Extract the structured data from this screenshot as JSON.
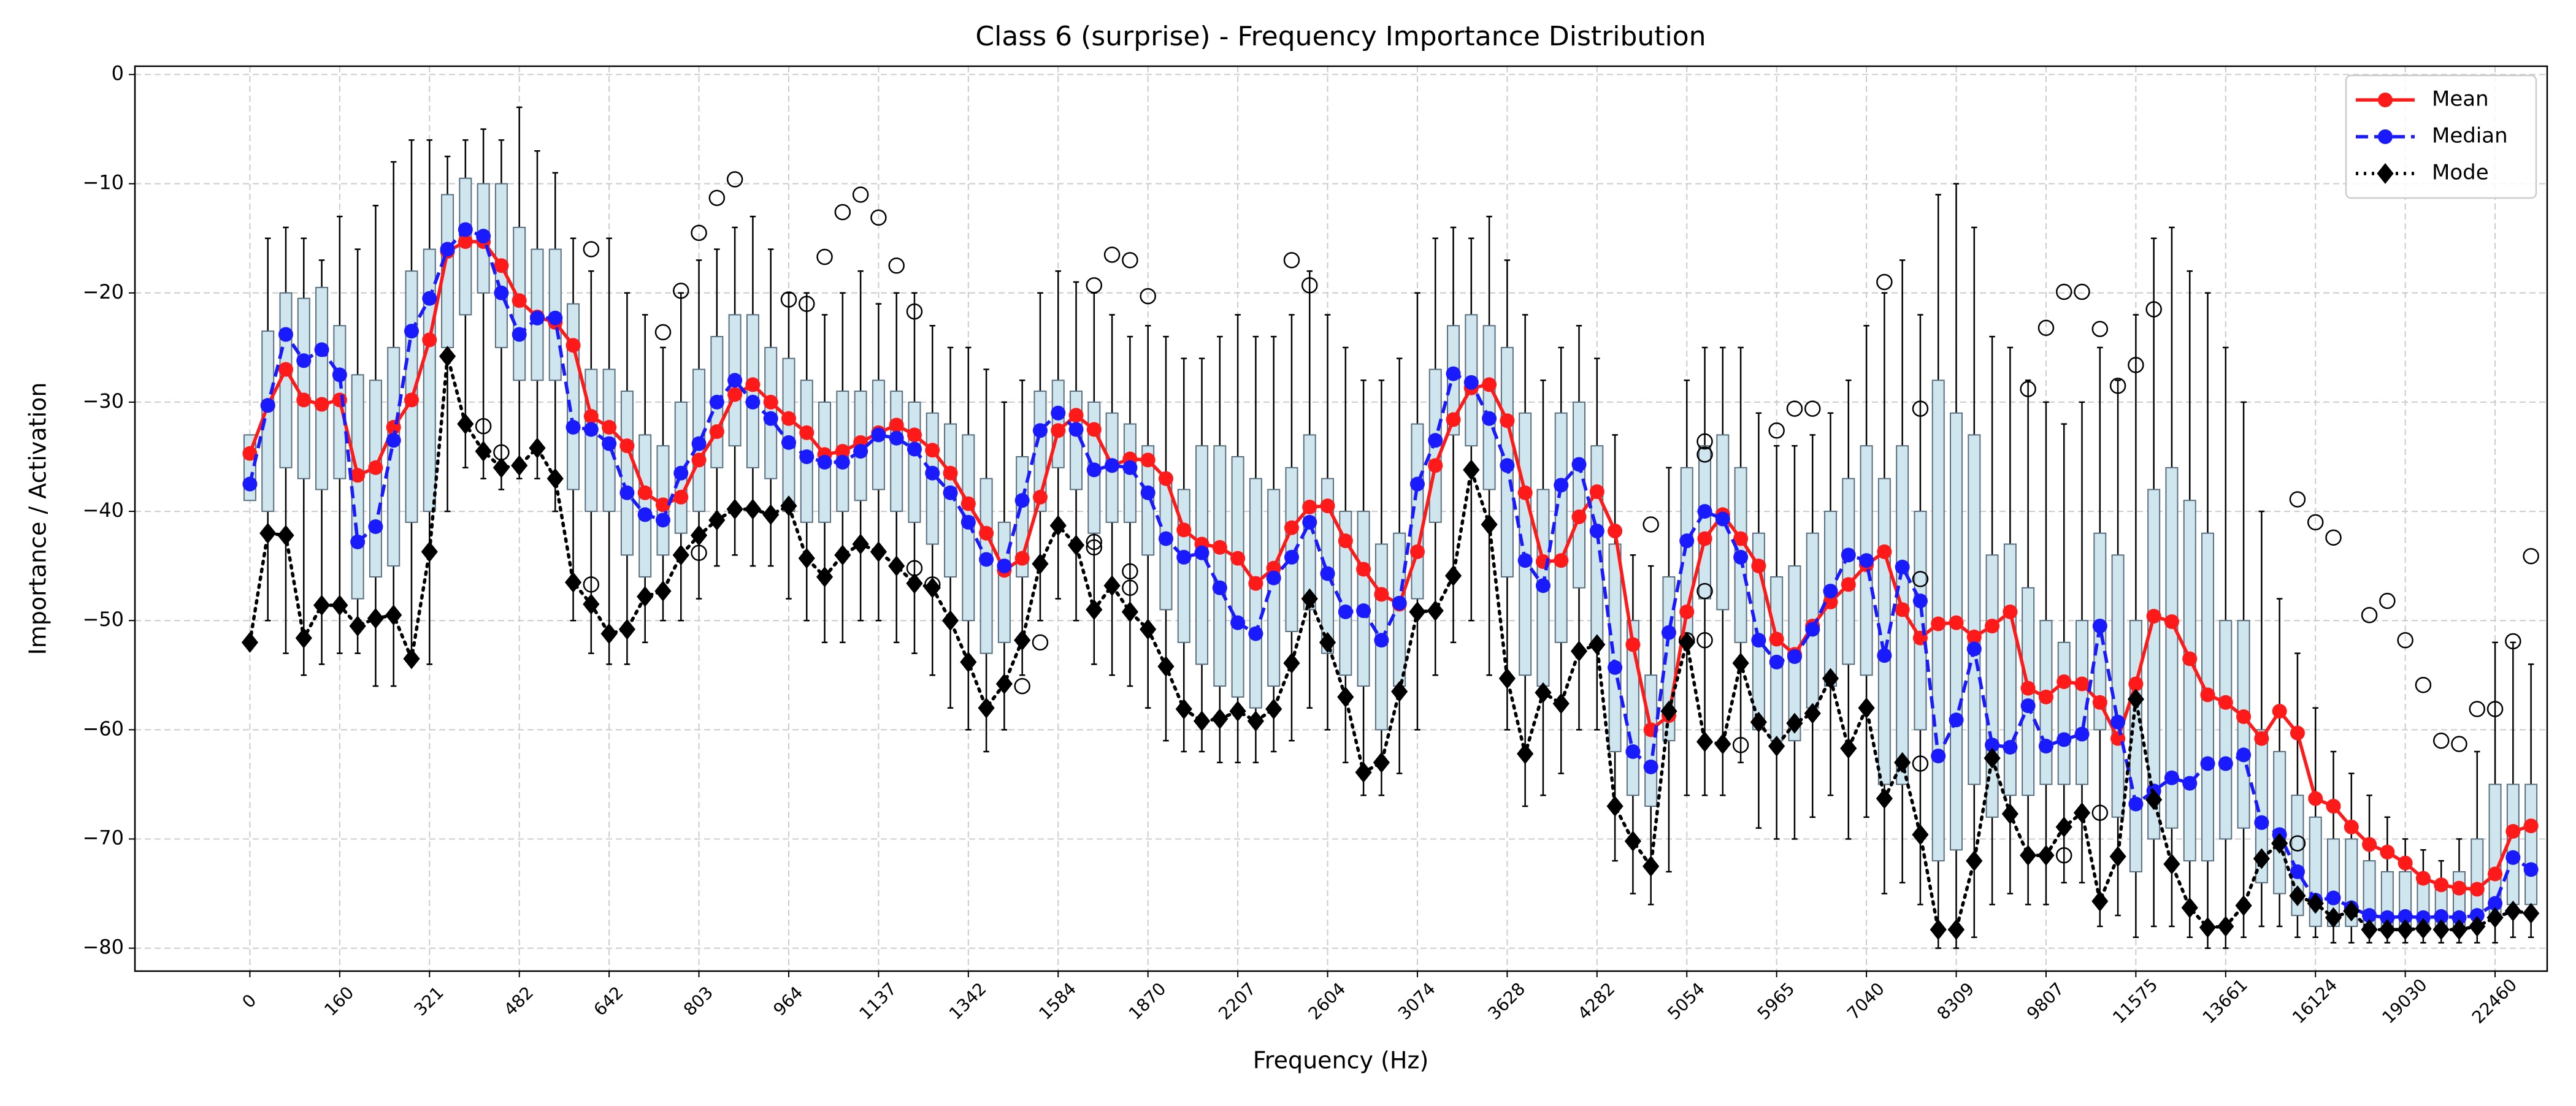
{
  "chart_data": {
    "type": "box",
    "title": "Class 6 (surprise) - Frequency Importance Distribution",
    "x_label": "Frequency (Hz)",
    "y_label": "Importance / Activation",
    "categories": [
      "0",
      null,
      null,
      null,
      null,
      "160",
      null,
      null,
      null,
      null,
      "321",
      null,
      null,
      null,
      null,
      "482",
      null,
      null,
      null,
      null,
      "642",
      null,
      null,
      null,
      null,
      "803",
      null,
      null,
      null,
      null,
      "964",
      null,
      null,
      null,
      null,
      "1137",
      null,
      null,
      null,
      null,
      "1342",
      null,
      null,
      null,
      null,
      "1584",
      null,
      null,
      null,
      null,
      "1870",
      null,
      null,
      null,
      null,
      "2207",
      null,
      null,
      null,
      null,
      "2604",
      null,
      null,
      null,
      null,
      "3074",
      null,
      null,
      null,
      null,
      "3628",
      null,
      null,
      null,
      null,
      "4282",
      null,
      null,
      null,
      null,
      "5054",
      null,
      null,
      null,
      null,
      "5965",
      null,
      null,
      null,
      null,
      "7040",
      null,
      null,
      null,
      null,
      "8309",
      null,
      null,
      null,
      null,
      "9807",
      null,
      null,
      null,
      null,
      "11575",
      null,
      null,
      null,
      null,
      "13661",
      null,
      null,
      null,
      null,
      "16124",
      null,
      null,
      null,
      null,
      "19030",
      null,
      null,
      null,
      null,
      "22460",
      null,
      null
    ],
    "boxes": {
      "fill": "#cfe6ef",
      "edge": "#5a6f7f",
      "median_color": "#ff8c1a",
      "q1": [
        -39,
        -40,
        -36,
        -37,
        -38,
        -37,
        -48,
        -46,
        -45,
        -41,
        -40,
        -25,
        -22,
        -20,
        -25,
        -28,
        -28,
        -28,
        -38,
        -40,
        -40,
        -44,
        -46,
        -44,
        -42,
        -40,
        -36,
        -34,
        -36,
        -37,
        -40,
        -41,
        -41,
        -40,
        -39,
        -38,
        -40,
        -41,
        -43,
        -46,
        -50,
        -53,
        -52,
        -46,
        -40,
        -36,
        -38,
        -42,
        -41,
        -41,
        -44,
        -49,
        -52,
        -54,
        -56,
        -57,
        -58,
        -56,
        -51,
        -49,
        -53,
        -55,
        -56,
        -60,
        -56,
        -48,
        -41,
        -33,
        -34,
        -38,
        -46,
        -55,
        -56,
        -52,
        -47,
        -52,
        -62,
        -66,
        -67,
        -61,
        -52,
        -48,
        -49,
        -52,
        -60,
        -61,
        -61,
        -58,
        -56,
        -54,
        -55,
        -65,
        -65,
        -60,
        -72,
        -71,
        -65,
        -68,
        -66,
        -66,
        -65,
        -65,
        -65,
        -60,
        -68,
        -73,
        -70,
        -69,
        -72,
        -72,
        -70,
        -69,
        -74,
        -75,
        -77,
        -78,
        -78,
        -78,
        -78.5,
        -78.5,
        -78.5,
        -78.5,
        -78.5,
        -78,
        -77,
        -77,
        -76,
        -76
      ],
      "q3": [
        -33,
        -23.5,
        -20,
        -20.5,
        -19.5,
        -23,
        -27.5,
        -28,
        -25,
        -18,
        -16,
        -11,
        -9.5,
        -10,
        -10,
        -14,
        -16,
        -16,
        -21,
        -27,
        -27,
        -29,
        -33,
        -34,
        -30,
        -27,
        -24,
        -22,
        -22,
        -25,
        -26,
        -28,
        -30,
        -29,
        -29,
        -28,
        -29,
        -30,
        -31,
        -32,
        -33,
        -37,
        -41,
        -35,
        -29,
        -28,
        -29,
        -30,
        -31,
        -32,
        -34,
        -37,
        -38,
        -34,
        -34,
        -35,
        -37,
        -38,
        -36,
        -33,
        -37,
        -40,
        -40,
        -43,
        -42,
        -32,
        -27,
        -23,
        -22,
        -23,
        -25,
        -31,
        -38,
        -31,
        -30,
        -34,
        -43,
        -50,
        -55,
        -46,
        -36,
        -34,
        -33,
        -36,
        -42,
        -46,
        -45,
        -42,
        -40,
        -37,
        -34,
        -37,
        -34,
        -40,
        -28,
        -31,
        -33,
        -44,
        -43,
        -47,
        -50,
        -52,
        -50,
        -42,
        -44,
        -50,
        -38,
        -36,
        -39,
        -42,
        -50,
        -50,
        -60,
        -62,
        -66,
        -68,
        -70,
        -70,
        -72,
        -73,
        -73,
        -74,
        -74,
        -73,
        -70,
        -65,
        -65,
        -65
      ],
      "whislo": [
        -35,
        -50,
        -53,
        -55,
        -54,
        -53,
        -53,
        -56,
        -56,
        -54,
        -54,
        -40,
        -36,
        -37,
        -38,
        -37,
        -37,
        -40,
        -50,
        -53,
        -54,
        -54,
        -52,
        -50,
        -50,
        -48,
        -45,
        -44,
        -45,
        -45,
        -48,
        -50,
        -52,
        -52,
        -50,
        -50,
        -52,
        -53,
        -55,
        -58,
        -60,
        -62,
        -60,
        -55,
        -50,
        -48,
        -50,
        -54,
        -55,
        -56,
        -58,
        -61,
        -62,
        -62,
        -63,
        -63,
        -63,
        -62,
        -61,
        -58,
        -60,
        -63,
        -66,
        -66,
        -64,
        -60,
        -55,
        -52,
        -50,
        -55,
        -60,
        -67,
        -66,
        -64,
        -60,
        -60,
        -72,
        -75,
        -76,
        -73,
        -66,
        -66,
        -66,
        -63,
        -69,
        -70,
        -70,
        -68,
        -66,
        -70,
        -68,
        -75,
        -74,
        -76,
        -80,
        -80,
        -79,
        -76,
        -75,
        -76,
        -76,
        -74,
        -74,
        -78,
        -77,
        -79,
        -78,
        -78,
        -79,
        -80,
        -80,
        -79,
        -78,
        -78,
        -79,
        -79,
        -79.5,
        -79.5,
        -79.5,
        -79.5,
        -79.5,
        -79.5,
        -79.5,
        -79.5,
        -79.5,
        -79.5,
        -79,
        -79
      ],
      "whishi": [
        -34,
        -15,
        -14,
        -15,
        -17,
        -13,
        -16,
        -12,
        -8,
        -6,
        -6,
        -7.5,
        -6,
        -5,
        -6,
        -3,
        -7,
        -9,
        -15,
        -18,
        -15,
        -20,
        -22,
        -25,
        -20,
        -17,
        -16,
        -14,
        -13,
        -16,
        -20,
        -20,
        -22,
        -20,
        -18,
        -21,
        -20,
        -20,
        -23,
        -25,
        -25,
        -27,
        -30,
        -28,
        -20,
        -18,
        -19,
        -20,
        -22,
        -24,
        -23,
        -24,
        -26,
        -26,
        -24,
        -22,
        -24,
        -24,
        -22,
        -18,
        -22,
        -25,
        -28,
        -28,
        -26,
        -20,
        -15,
        -14,
        -15,
        -13,
        -17,
        -22,
        -28,
        -25,
        -23,
        -26,
        -33,
        -44,
        -45,
        -36,
        -28,
        -25,
        -25,
        -25,
        -31,
        -34,
        -34,
        -33,
        -31,
        -28,
        -23,
        -20,
        -17,
        -22,
        -11,
        -10,
        -14,
        -24,
        -25,
        -28,
        -30,
        -32,
        -30,
        -25,
        -28,
        -22,
        -15,
        -14,
        -18,
        -20,
        -25,
        -30,
        -40,
        -48,
        -53,
        -58,
        -62,
        -64,
        -66,
        -68,
        -70,
        -71,
        -72,
        -70,
        -62,
        -52,
        -52,
        -54
      ]
    },
    "outliers": {
      "color": "#000000",
      "x": [
        13,
        14,
        19,
        19,
        23,
        24,
        25,
        25,
        26,
        27,
        30,
        31,
        32,
        33,
        34,
        35,
        36,
        37,
        37,
        38,
        43,
        44,
        47,
        48,
        49,
        49,
        49,
        47,
        47,
        50,
        58,
        59,
        78,
        81,
        81,
        81,
        81,
        80,
        83,
        85,
        86,
        87,
        91,
        93,
        93,
        93,
        99,
        100,
        101,
        101,
        102,
        103,
        103,
        104,
        105,
        106,
        114,
        114,
        115,
        116,
        118,
        119,
        120,
        121,
        122,
        123,
        124,
        125,
        126,
        127
      ],
      "values": [
        -32.2,
        -34.6,
        -16,
        -46.7,
        -23.6,
        -19.8,
        -14.5,
        -43.8,
        -11.3,
        -9.6,
        -20.6,
        -21,
        -16.7,
        -12.6,
        -11,
        -13.1,
        -17.5,
        -21.7,
        -45.2,
        -46.7,
        -56,
        -52,
        -19.3,
        -16.5,
        -17,
        -45.5,
        -47,
        -42.8,
        -43.3,
        -20.3,
        -17,
        -19.3,
        -41.2,
        -33.6,
        -34.8,
        -47.3,
        -51.8,
        -51.8,
        -61.4,
        -32.6,
        -30.6,
        -30.6,
        -19,
        -46.2,
        -63.1,
        -30.6,
        -28.8,
        -23.2,
        -19.9,
        -71.5,
        -19.9,
        -23.3,
        -67.6,
        -28.5,
        -26.6,
        -21.5,
        -38.9,
        -70.4,
        -41,
        -42.4,
        -49.5,
        -48.2,
        -51.8,
        -55.9,
        -61,
        -61.3,
        -58.1,
        -58.1,
        -51.9,
        -44.1
      ]
    },
    "series": [
      {
        "name": "Mean",
        "color": "#ff1a1a",
        "line": "solid",
        "marker": "circle",
        "values": [
          -34.7,
          -30.3,
          -27,
          -29.8,
          -30.2,
          -29.8,
          -36.7,
          -36,
          -32.3,
          -29.8,
          -24.3,
          -16.2,
          -15.3,
          -15.3,
          -17.5,
          -20.7,
          -22.2,
          -22.7,
          -24.8,
          -31.3,
          -32.3,
          -34,
          -38.3,
          -39.4,
          -38.7,
          -35.3,
          -32.7,
          -29.3,
          -28.4,
          -30,
          -31.5,
          -32.8,
          -34.8,
          -34.5,
          -33.7,
          -32.8,
          -32.1,
          -33,
          -34.4,
          -36.5,
          -39.3,
          -42,
          -45.4,
          -44.3,
          -38.7,
          -32.6,
          -31.2,
          -32.5,
          -35.8,
          -35.2,
          -35.3,
          -37,
          -41.7,
          -43,
          -43.3,
          -44.3,
          -46.6,
          -45.2,
          -41.5,
          -39.6,
          -39.5,
          -42.7,
          -45.3,
          -47.6,
          -48.5,
          -43.7,
          -35.8,
          -31.6,
          -28.7,
          -28.4,
          -31.7,
          -38.3,
          -44.6,
          -44.5,
          -40.5,
          -38.2,
          -41.8,
          -52.2,
          -60,
          -58.7,
          -49.2,
          -42.5,
          -40.3,
          -42.5,
          -45,
          -51.7,
          -53.1,
          -50.5,
          -48.3,
          -46.7,
          -44.9,
          -43.7,
          -49,
          -51.6,
          -50.3,
          -50.2,
          -51.5,
          -50.5,
          -49.2,
          -56.2,
          -57,
          -55.6,
          -55.8,
          -57.5,
          -60.8,
          -55.8,
          -49.6,
          -50.1,
          -53.5,
          -56.8,
          -57.5,
          -58.8,
          -60.8,
          -58.3,
          -60.3,
          -66.3,
          -67,
          -68.9,
          -70.5,
          -71.2,
          -72.2,
          -73.6,
          -74.2,
          -74.5,
          -74.6,
          -73.2,
          -69.3,
          -68.8
        ]
      },
      {
        "name": "Median",
        "color": "#1a1aff",
        "line": "dashed",
        "marker": "circle",
        "values": [
          -37.5,
          -30.3,
          -23.8,
          -26.2,
          -25.2,
          -27.5,
          -42.8,
          -41.4,
          -33.5,
          -23.5,
          -20.5,
          -16,
          -14.2,
          -14.8,
          -20,
          -23.8,
          -22.3,
          -22.3,
          -32.3,
          -32.5,
          -33.8,
          -38.3,
          -40.3,
          -40.8,
          -36.5,
          -33.8,
          -30,
          -28,
          -30,
          -31.5,
          -33.7,
          -35,
          -35.5,
          -35.5,
          -34.5,
          -33,
          -33.3,
          -34.3,
          -36.5,
          -38.3,
          -41,
          -44.4,
          -45,
          -39,
          -32.6,
          -31,
          -32.5,
          -36.2,
          -35.8,
          -36,
          -38.3,
          -42.5,
          -44.2,
          -43.8,
          -47,
          -50.2,
          -51.2,
          -46.1,
          -44.2,
          -41,
          -45.7,
          -49.2,
          -49.1,
          -51.8,
          -48.4,
          -37.5,
          -33.5,
          -27.4,
          -28.2,
          -31.5,
          -35.8,
          -44.5,
          -46.8,
          -37.6,
          -35.7,
          -41.8,
          -54.3,
          -62,
          -63.4,
          -51.1,
          -42.7,
          -40,
          -40.7,
          -44.2,
          -51.8,
          -53.8,
          -53.3,
          -50.8,
          -47.3,
          -44,
          -44.5,
          -53.2,
          -45.1,
          -48.2,
          -62.4,
          -59.1,
          -52.6,
          -61.4,
          -61.6,
          -57.8,
          -61.5,
          -60.9,
          -60.4,
          -50.5,
          -59.3,
          -66.8,
          -65.6,
          -64.4,
          -64.9,
          -63.1,
          -63.1,
          -62.3,
          -68.5,
          -69.6,
          -73,
          -75.6,
          -75.4,
          -76.3,
          -77,
          -77.2,
          -77.1,
          -77.2,
          -77.1,
          -77.2,
          -77,
          -75.9,
          -71.7,
          -72.8
        ]
      },
      {
        "name": "Mode",
        "color": "#000000",
        "line": "dotted",
        "marker": "diamond",
        "values": [
          -52,
          -42,
          -42.2,
          -51.6,
          -48.6,
          -48.6,
          -50.5,
          -49.8,
          -49.5,
          -53.5,
          -43.7,
          -25.8,
          -32,
          -34.5,
          -36,
          -35.8,
          -34.2,
          -37,
          -46.5,
          -48.5,
          -51.2,
          -50.8,
          -47.8,
          -47.3,
          -44,
          -42.2,
          -40.8,
          -39.8,
          -39.8,
          -40.3,
          -39.5,
          -44.3,
          -46,
          -44,
          -43,
          -43.7,
          -45,
          -46.6,
          -47,
          -50,
          -53.8,
          -58,
          -55.8,
          -51.8,
          -44.8,
          -41.3,
          -43.1,
          -49,
          -46.8,
          -49.2,
          -50.8,
          -54.2,
          -58.1,
          -59.2,
          -59,
          -58.3,
          -59.2,
          -58.1,
          -53.9,
          -48,
          -52,
          -57,
          -63.9,
          -63,
          -56.5,
          -49.2,
          -49.1,
          -45.9,
          -36.2,
          -41.2,
          -55.3,
          -62.2,
          -56.6,
          -57.6,
          -52.8,
          -52.2,
          -67,
          -70.2,
          -72.5,
          -58.3,
          -52,
          -61.1,
          -61.3,
          -53.9,
          -59.3,
          -61.5,
          -59.4,
          -58.5,
          -55.3,
          -61.7,
          -58,
          -66.3,
          -63,
          -69.6,
          -78.3,
          -78.3,
          -72,
          -62.6,
          -67.7,
          -71.5,
          -71.5,
          -68.9,
          -67.6,
          -75.7,
          -71.6,
          -57.2,
          -66.4,
          -72.3,
          -76.3,
          -78.1,
          -78,
          -76.1,
          -71.8,
          -70.4,
          -75.2,
          -75.9,
          -77.2,
          -76.6,
          -78.3,
          -78.3,
          -78.3,
          -78.2,
          -78.3,
          -78.3,
          -78,
          -77.2,
          -76.6,
          -76.8
        ]
      }
    ],
    "ylim": [
      -82.1,
      0.76
    ],
    "yticks": [
      0,
      {
        "value": -10,
        "label": "−10"
      },
      {
        "value": -20,
        "label": "−20"
      },
      {
        "value": -30,
        "label": "−30"
      },
      {
        "value": -40,
        "label": "−40"
      },
      {
        "value": -50,
        "label": "−50"
      },
      {
        "value": -60,
        "label": "−60"
      },
      {
        "value": -70,
        "label": "−70"
      },
      {
        "value": -80,
        "label": "−80"
      }
    ],
    "grid": true,
    "legend": "upper right"
  }
}
